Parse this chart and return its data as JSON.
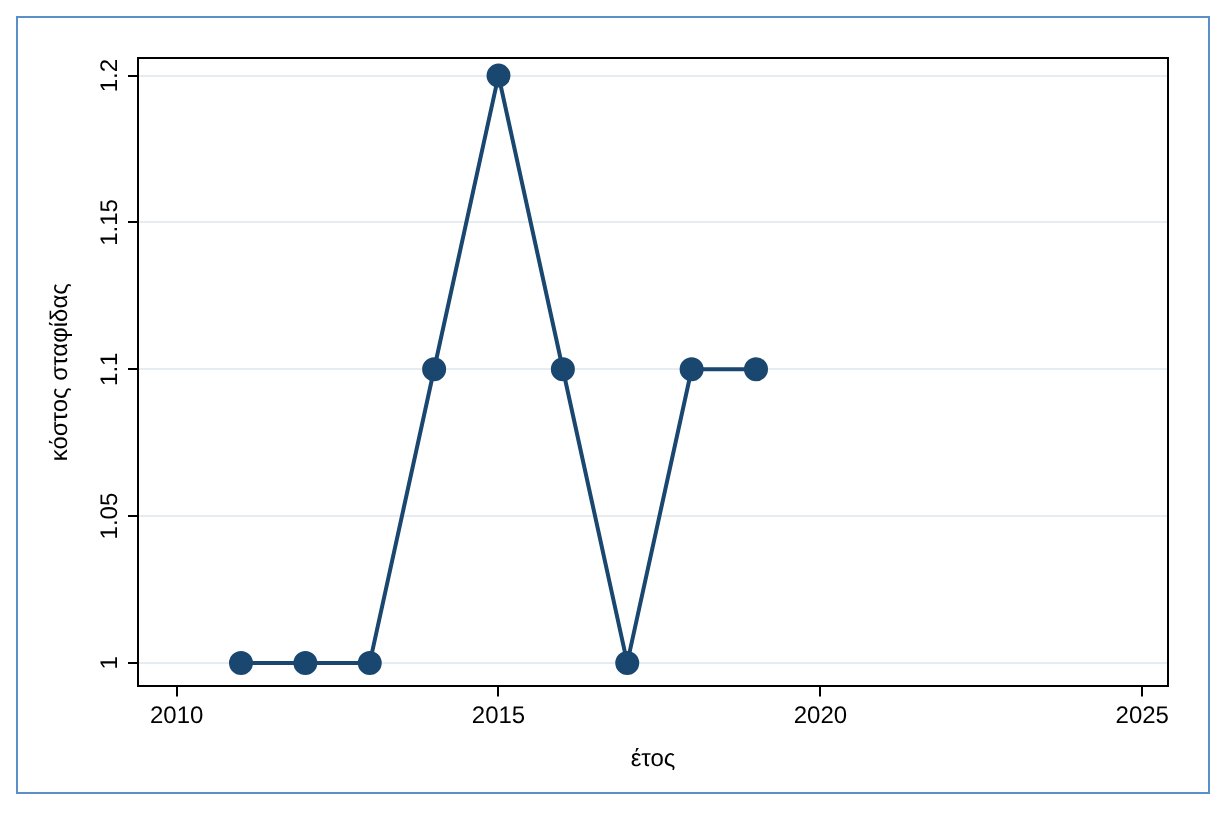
{
  "chart_data": {
    "type": "line",
    "xlabel": "έτος",
    "ylabel": "κόστος σταφίδας",
    "x": [
      2011,
      2012,
      2013,
      2014,
      2015,
      2016,
      2017,
      2018,
      2019
    ],
    "series": [
      {
        "color": "#1a476f",
        "values": [
          1,
          1,
          1,
          1.1,
          1.2,
          1.1,
          1,
          1.1,
          1.1
        ]
      }
    ],
    "xlim": [
      2009.4,
      2025.4
    ],
    "xticks": [
      2010,
      2015,
      2020,
      2025
    ],
    "ylim": [
      0.992,
      1.206
    ],
    "yticks": [
      1,
      1.05,
      1.1,
      1.15,
      1.2
    ],
    "grid": "y",
    "legend": false,
    "marker": "circle",
    "line_style": "solid"
  }
}
